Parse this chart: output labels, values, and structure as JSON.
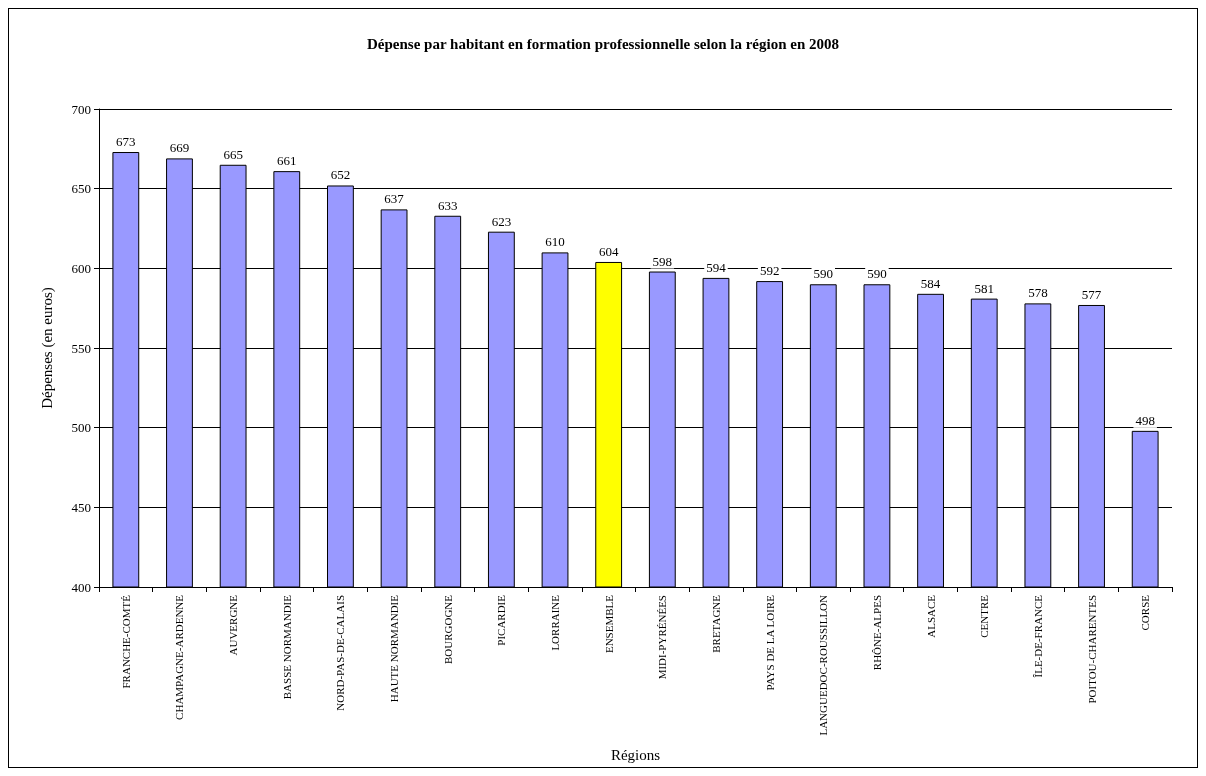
{
  "chart_data": {
    "type": "bar",
    "title": "Dépense par habitant en formation professionnelle selon la région en 2008",
    "xlabel": "Régions",
    "ylabel": "Dépenses (en euros)",
    "categories": [
      "FRANCHE-COMTÉ",
      "CHAMPAGNE-ARDENNE",
      "AUVERGNE",
      "BASSE NORMANDIE",
      "NORD-PAS-DE-CALAIS",
      "HAUTE NORMANDIE",
      "BOURGOGNE",
      "PICARDIE",
      "LORRAINE",
      "ENSEMBLE",
      "MIDI-PYRÉNÉES",
      "BRETAGNE",
      "PAYS DE LA LOIRE",
      "LANGUEDOC-ROUSSILLON",
      "RHÔNE-ALPES",
      "ALSACE",
      "CENTRE",
      "ÎLE-DE-FRANCE",
      "POITOU-CHARENTES",
      "CORSE"
    ],
    "values": [
      673,
      669,
      665,
      661,
      652,
      637,
      633,
      623,
      610,
      604,
      598,
      594,
      592,
      590,
      590,
      584,
      581,
      578,
      577,
      498
    ],
    "colors": [
      "#9999ff",
      "#9999ff",
      "#9999ff",
      "#9999ff",
      "#9999ff",
      "#9999ff",
      "#9999ff",
      "#9999ff",
      "#9999ff",
      "#ffff00",
      "#9999ff",
      "#9999ff",
      "#9999ff",
      "#9999ff",
      "#9999ff",
      "#9999ff",
      "#9999ff",
      "#9999ff",
      "#9999ff",
      "#9999ff"
    ],
    "ylim": [
      400,
      700
    ],
    "yticks": [
      400,
      450,
      500,
      550,
      600,
      650,
      700
    ],
    "grid": "y",
    "data_labels": true
  }
}
